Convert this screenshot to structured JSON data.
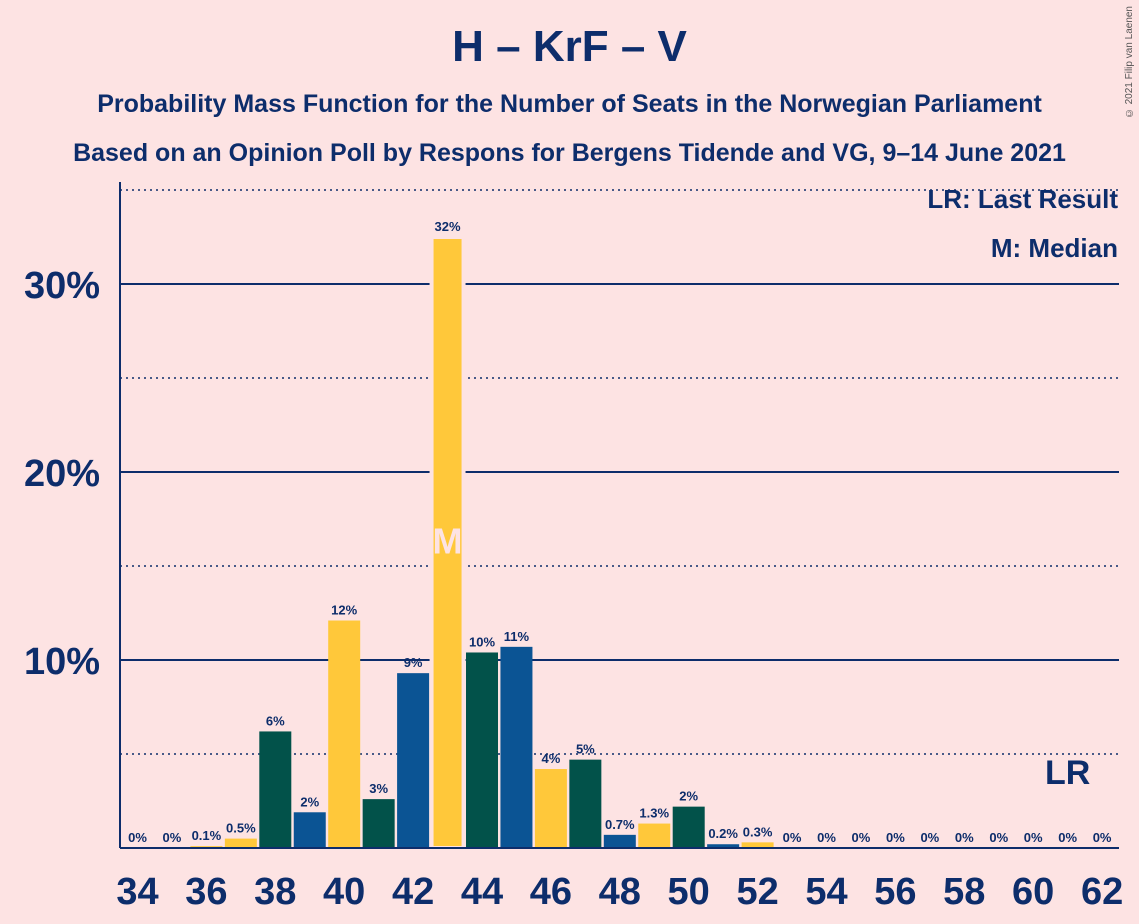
{
  "title": "H – KrF – V",
  "subtitle1": "Probability Mass Function for the Number of Seats in the Norwegian Parliament",
  "subtitle2": "Based on an Opinion Poll by Respons for Bergens Tidende and VG, 9–14 June 2021",
  "copyright": "© 2021 Filip van Laenen",
  "legend": {
    "last_result": "LR: Last Result",
    "median": "M: Median"
  },
  "colors": {
    "background": "#fde3e3",
    "text": "#0d2d6b",
    "green": "#02524a",
    "blue": "#0b5494",
    "yellow": "#ffc83a"
  },
  "chart_data": {
    "type": "bar",
    "xlabel": "",
    "ylabel": "",
    "x": [
      34,
      35,
      36,
      37,
      38,
      39,
      40,
      41,
      42,
      43,
      44,
      45,
      46,
      47,
      48,
      49,
      50,
      51,
      52,
      53,
      54,
      55,
      56,
      57,
      58,
      59,
      60,
      61,
      62
    ],
    "values": [
      0,
      0,
      0.1,
      0.5,
      6.2,
      1.9,
      12.1,
      2.6,
      9.3,
      32.5,
      10.4,
      10.7,
      4.2,
      4.7,
      0.7,
      1.3,
      2.2,
      0.2,
      0.3,
      0,
      0,
      0,
      0,
      0,
      0,
      0,
      0,
      0,
      0
    ],
    "labels": [
      "0%",
      "0%",
      "0.1%",
      "0.5%",
      "6%",
      "2%",
      "12%",
      "3%",
      "9%",
      "32%",
      "10%",
      "11%",
      "4%",
      "5%",
      "0.7%",
      "1.3%",
      "2%",
      "0.2%",
      "0.3%",
      "0%",
      "0%",
      "0%",
      "0%",
      "0%",
      "0%",
      "0%",
      "0%",
      "0%",
      "0%"
    ],
    "bar_colors": [
      "green",
      "blue",
      "yellow",
      "yellow",
      "green",
      "blue",
      "yellow",
      "green",
      "blue",
      "yellow",
      "green",
      "blue",
      "yellow",
      "green",
      "blue",
      "yellow",
      "green",
      "blue",
      "yellow",
      "green",
      "blue",
      "yellow",
      "green",
      "blue",
      "yellow",
      "green",
      "blue",
      "yellow",
      "green"
    ],
    "x_tick_labels": [
      "34",
      "36",
      "38",
      "40",
      "42",
      "44",
      "46",
      "48",
      "50",
      "52",
      "54",
      "56",
      "58",
      "60",
      "62"
    ],
    "y_tick_values": [
      10,
      20,
      30
    ],
    "y_tick_labels": [
      "10%",
      "20%",
      "30%"
    ],
    "ylim": [
      0,
      35
    ],
    "median_seat": 43,
    "median_marker": "M",
    "last_result_seat": 61,
    "last_result_marker": "LR",
    "grid": "solid lines at 10% steps, dotted lines at 5% offsets"
  }
}
